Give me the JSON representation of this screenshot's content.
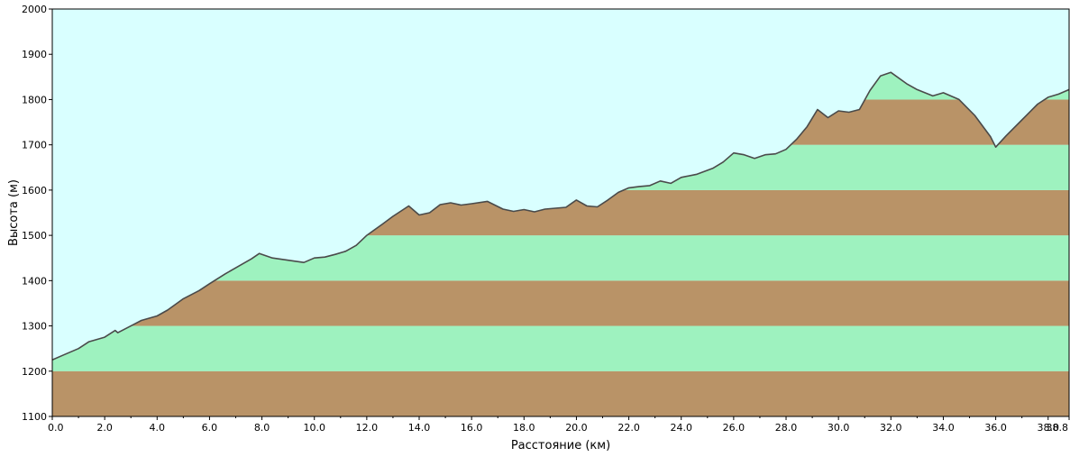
{
  "chart_data": {
    "type": "area",
    "xlabel": "Расстояние   (км)",
    "ylabel": "Высота (м)",
    "xlim": [
      0,
      38.8
    ],
    "ylim": [
      1100,
      2000
    ],
    "x_ticks": [
      0,
      2,
      4,
      6,
      8,
      10,
      12,
      14,
      16,
      18,
      20,
      22,
      24,
      26,
      28,
      30,
      32,
      34,
      36,
      38,
      38.8
    ],
    "x_tick_labels": [
      "0.0",
      "2.0",
      "4.0",
      "6.0",
      "8.0",
      "10.0",
      "12.0",
      "14.0",
      "16.0",
      "18.0",
      "20.0",
      "22.0",
      "24.0",
      "26.0",
      "28.0",
      "30.0",
      "32.0",
      "34.0",
      "36.0",
      "38.0",
      "38.8"
    ],
    "y_ticks": [
      1100,
      1200,
      1300,
      1400,
      1500,
      1600,
      1700,
      1800,
      1900,
      2000
    ],
    "y_tick_labels": [
      "1100",
      "1200",
      "1300",
      "1400",
      "1500",
      "1600",
      "1700",
      "1800",
      "1900",
      "2000"
    ],
    "grid": false,
    "colors": {
      "sky": "#d9ffff",
      "band_brown": "#b99367",
      "band_green": "#9ef2bf",
      "profile_line": "#4a4a4a"
    },
    "series": [
      {
        "x": [
          0,
          0.4,
          1.0,
          1.4,
          2.0,
          2.4,
          2.5,
          3.0,
          3.4,
          4.0,
          4.4,
          5.0,
          5.6,
          6.0,
          6.6,
          7.2,
          7.6,
          7.9,
          8.4,
          9.0,
          9.6,
          10.0,
          10.4,
          10.8,
          11.2,
          11.6,
          12.0,
          12.6,
          13.0,
          13.6,
          14.0,
          14.4,
          14.8,
          15.2,
          15.6,
          16.0,
          16.6,
          17.2,
          17.6,
          18.0,
          18.4,
          18.8,
          19.2,
          19.6,
          20.0,
          20.4,
          20.8,
          21.2,
          21.6,
          22.0,
          22.4,
          22.8,
          23.2,
          23.6,
          24.0,
          24.6,
          25.2,
          25.6,
          26.0,
          26.4,
          26.8,
          27.2,
          27.6,
          28.0,
          28.4,
          28.8,
          29.2,
          29.6,
          30.0,
          30.4,
          30.8,
          31.2,
          31.6,
          32.0,
          32.6,
          33.0,
          33.6,
          34.0,
          34.6,
          35.2,
          35.8,
          36.0,
          36.4,
          37.0,
          37.6,
          38.0,
          38.4,
          38.8
        ],
        "y": [
          1225,
          1235,
          1250,
          1265,
          1275,
          1290,
          1285,
          1300,
          1312,
          1322,
          1335,
          1360,
          1378,
          1393,
          1415,
          1435,
          1448,
          1460,
          1450,
          1445,
          1440,
          1450,
          1452,
          1458,
          1465,
          1478,
          1500,
          1525,
          1542,
          1565,
          1545,
          1550,
          1568,
          1572,
          1567,
          1570,
          1575,
          1558,
          1553,
          1557,
          1552,
          1558,
          1560,
          1562,
          1578,
          1565,
          1563,
          1578,
          1595,
          1605,
          1608,
          1610,
          1620,
          1615,
          1628,
          1635,
          1648,
          1662,
          1682,
          1678,
          1670,
          1678,
          1680,
          1690,
          1712,
          1740,
          1778,
          1760,
          1775,
          1772,
          1778,
          1820,
          1852,
          1860,
          1835,
          1822,
          1808,
          1815,
          1800,
          1765,
          1718,
          1695,
          1720,
          1755,
          1790,
          1805,
          1812,
          1822
        ]
      }
    ]
  }
}
